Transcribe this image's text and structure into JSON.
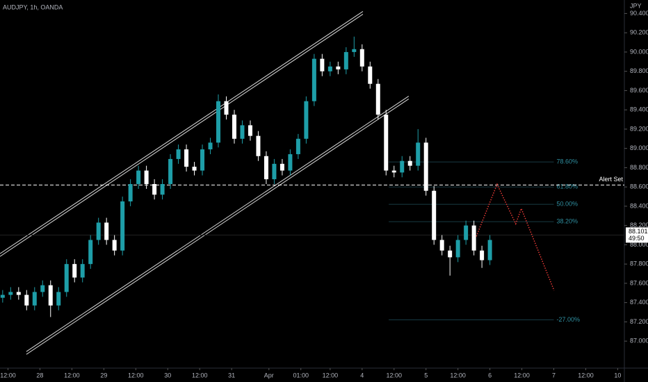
{
  "chart_data": {
    "type": "candlestick",
    "title": "AUDJPY, 1h, OANDA",
    "currency": "JPY",
    "up_color": "#1e9ea8",
    "down_color": "#ffffff",
    "x": [
      1,
      4,
      7,
      10,
      13,
      16,
      19,
      22,
      25,
      28,
      31,
      34,
      37,
      40,
      43,
      46,
      49,
      52,
      55,
      58,
      61,
      64,
      67,
      70,
      73,
      76,
      79,
      82,
      85,
      88,
      91,
      94,
      97,
      100,
      103,
      106,
      109,
      112,
      115,
      118,
      121,
      124,
      127,
      130,
      133,
      136,
      139,
      142,
      145,
      148,
      151,
      154,
      157,
      160,
      163,
      166,
      169,
      172,
      175,
      178,
      181,
      184
    ],
    "open": [
      87.45,
      87.48,
      87.51,
      87.48,
      87.37,
      87.51,
      87.58,
      87.37,
      87.51,
      87.8,
      87.66,
      87.8,
      88.05,
      88.23,
      88.05,
      87.94,
      88.45,
      88.63,
      88.77,
      88.63,
      88.52,
      88.63,
      88.89,
      88.99,
      88.81,
      88.77,
      88.99,
      89.06,
      89.49,
      89.35,
      89.1,
      89.24,
      89.13,
      88.92,
      88.68,
      88.84,
      88.77,
      88.94,
      89.1,
      89.49,
      89.93,
      89.8,
      89.85,
      89.82,
      90.0,
      90.03,
      89.85,
      89.67,
      89.35,
      88.77,
      88.75,
      88.87,
      88.82,
      89.06,
      88.56,
      88.05,
      87.94,
      87.87,
      88.05,
      88.2,
      87.94,
      87.84
    ],
    "high": [
      87.53,
      87.56,
      87.56,
      87.53,
      87.56,
      87.63,
      87.63,
      87.56,
      87.85,
      87.85,
      87.85,
      88.1,
      88.28,
      88.28,
      88.1,
      88.5,
      88.68,
      88.82,
      88.82,
      88.68,
      88.68,
      88.94,
      89.04,
      89.04,
      88.86,
      89.04,
      89.11,
      89.56,
      89.54,
      89.4,
      89.29,
      89.29,
      89.18,
      88.97,
      88.89,
      88.89,
      88.99,
      89.15,
      89.54,
      89.98,
      89.98,
      89.9,
      89.9,
      90.05,
      90.16,
      90.08,
      89.9,
      89.72,
      89.4,
      88.82,
      88.92,
      88.92,
      89.2,
      89.11,
      88.61,
      88.1,
      87.99,
      88.1,
      88.25,
      88.25,
      87.99,
      88.1
    ],
    "low": [
      87.4,
      87.43,
      87.43,
      87.32,
      87.32,
      87.46,
      87.25,
      87.32,
      87.46,
      87.61,
      87.61,
      87.75,
      88.0,
      88.0,
      87.89,
      87.89,
      88.4,
      88.58,
      88.58,
      88.47,
      88.47,
      88.58,
      88.84,
      88.76,
      88.72,
      88.72,
      88.94,
      89.01,
      89.3,
      89.05,
      89.05,
      89.08,
      88.87,
      88.63,
      88.63,
      88.72,
      88.72,
      88.89,
      89.05,
      89.44,
      89.75,
      89.75,
      89.77,
      89.77,
      89.95,
      89.8,
      89.62,
      89.3,
      88.72,
      88.7,
      88.7,
      88.77,
      88.77,
      88.51,
      88.0,
      87.89,
      87.68,
      87.82,
      88.0,
      87.89,
      87.76,
      87.79
    ],
    "close": [
      87.48,
      87.51,
      87.48,
      87.37,
      87.51,
      87.58,
      87.37,
      87.51,
      87.8,
      87.66,
      87.8,
      88.05,
      88.23,
      88.05,
      87.94,
      88.45,
      88.63,
      88.77,
      88.63,
      88.52,
      88.63,
      88.89,
      88.99,
      88.81,
      88.77,
      88.99,
      89.06,
      89.49,
      89.35,
      89.1,
      89.24,
      89.13,
      88.92,
      88.68,
      88.84,
      88.77,
      88.94,
      89.1,
      89.49,
      89.93,
      89.8,
      89.85,
      89.82,
      90.0,
      90.03,
      89.85,
      89.67,
      89.35,
      88.77,
      88.75,
      88.87,
      88.82,
      89.06,
      88.56,
      88.05,
      87.94,
      87.87,
      88.05,
      88.2,
      87.94,
      87.84,
      88.05
    ],
    "xlim": [
      0,
      234.5
    ],
    "ylim": [
      86.72,
      90.54
    ],
    "xticks": [
      {
        "value": 3,
        "label": "12:00"
      },
      28,
      {
        "value": 27,
        "label": "12:00"
      },
      29,
      {
        "value": 51,
        "label": "12:00"
      },
      30,
      {
        "value": 75,
        "label": "12:00"
      },
      31,
      {
        "value": 101,
        "label": "Apr"
      },
      {
        "value": 113,
        "label": "01:00"
      },
      {
        "value": 124,
        "label": "12:00"
      },
      4,
      {
        "value": 148,
        "label": "12:00"
      },
      5,
      {
        "value": 172,
        "label": "12:00"
      },
      6,
      {
        "value": 196,
        "label": "12:00"
      },
      7,
      {
        "value": 220,
        "label": "12:00"
      },
      10
    ],
    "xtick_positions": [
      3,
      15,
      27,
      39,
      51,
      63,
      75,
      87,
      101,
      113,
      124,
      136,
      148,
      160,
      172,
      184,
      196,
      208,
      220,
      232
    ],
    "yticks": [
      {
        "value": 90.4,
        "label": "90.400"
      },
      {
        "value": 90.2,
        "label": "90.200"
      },
      {
        "value": 90.0,
        "label": "90.000"
      },
      {
        "value": 89.8,
        "label": "89.800"
      },
      {
        "value": 89.6,
        "label": "89.600"
      },
      {
        "value": 89.4,
        "label": "89.400"
      },
      {
        "value": 89.2,
        "label": "89.200"
      },
      {
        "value": 89.0,
        "label": "89.000"
      },
      {
        "value": 88.8,
        "label": "88.800"
      },
      {
        "value": 88.6,
        "label": "88.600"
      },
      {
        "value": 88.4,
        "label": "88.400"
      },
      {
        "value": 88.2,
        "label": "88.200"
      },
      {
        "value": 88.0,
        "label": "88.000"
      },
      {
        "value": 87.8,
        "label": "87.800"
      },
      {
        "value": 87.6,
        "label": "87.600"
      },
      {
        "value": 87.4,
        "label": "87.400"
      },
      {
        "value": 87.2,
        "label": "87.200"
      },
      {
        "value": 87.0,
        "label": "87.000"
      }
    ],
    "grid": false,
    "channel": [
      {
        "x": [
          0,
          136.3
        ],
        "y": [
          87.893,
          90.407
        ]
      },
      {
        "x": [
          9.9,
          153.5
        ],
        "y": [
          86.877,
          89.528
        ]
      }
    ],
    "alert": {
      "label": "Alert Set",
      "price": 88.62
    },
    "fib": {
      "x_range": [
        146,
        208
      ],
      "levels": [
        {
          "price": 88.86,
          "label": "78.60%"
        },
        {
          "price": 88.6,
          "label": "61.80%"
        },
        {
          "price": 88.42,
          "label": "50.00%"
        },
        {
          "price": 88.24,
          "label": "38.20%"
        },
        {
          "price": 87.22,
          "label": "-27.00%"
        }
      ]
    },
    "projection": {
      "color": "#e53935",
      "x": [
        178.9,
        186.7,
        193.7,
        195.8,
        208.1
      ],
      "y": [
        88.087,
        88.628,
        88.217,
        88.376,
        87.526
      ]
    },
    "last_price": 88.101,
    "countdown": "49:50"
  }
}
